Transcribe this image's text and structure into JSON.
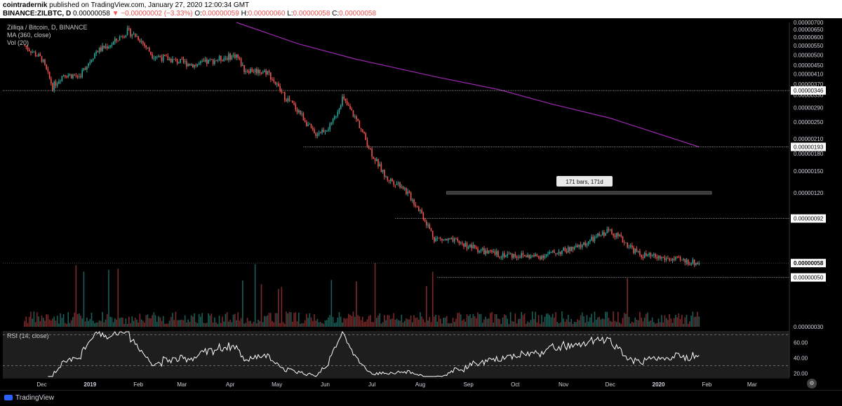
{
  "header": {
    "line1_author": "cointradernik",
    "line1_rest": " published on TradingView.com, January 27, 2020 12:00:34 GMT",
    "symbol": "BINANCE:ZILBTC, D",
    "last": "0.00000058",
    "change": "▼ −0.00000002 (−3.33%)",
    "o_label": "O:",
    "o": "0.00000059",
    "h_label": "H:",
    "h": "0.00000060",
    "l_label": "L:",
    "l": "0.00000058",
    "c_label": "C:",
    "c": "0.00000058"
  },
  "legend": {
    "title": "Zilliqa / Bitcoin, D, BINANCE",
    "ma": "MA (360, close)",
    "vol": "Vol (20)"
  },
  "rsi_title": "RSI (14, close)",
  "annotation": "171 bars, 171d",
  "footer": {
    "brand": "TradingView"
  },
  "colors": {
    "up": "#26a69a",
    "down": "#ef5350",
    "ma": "#9c27b0",
    "rsi_line": "#ffffff",
    "bg": "#000000",
    "axis_text": "#d1d4dc"
  },
  "chart_data": {
    "type": "candlestick",
    "title": "Zilliqa / Bitcoin, D, BINANCE",
    "price_axis_ticks": [
      "0.00000700",
      "0.00000650",
      "0.00000600",
      "0.00000550",
      "0.00000500",
      "0.00000450",
      "0.00000410",
      "0.00000370",
      "0.00000330",
      "0.00000290",
      "0.00000250",
      "0.00000210",
      "0.00000180",
      "0.00000150",
      "0.00000120",
      "0.00000050",
      "0.00000030"
    ],
    "ylim": [
      3e-07,
      7e-06
    ],
    "scale": "log",
    "x_ticks": [
      "Dec",
      "2019",
      "Feb",
      "Mar",
      "Apr",
      "May",
      "Jun",
      "Jul",
      "Aug",
      "Sep",
      "Oct",
      "Nov",
      "Dec",
      "2020",
      "Feb",
      "Mar"
    ],
    "price_path": [
      [
        "2018-11-20",
        5.5e-06
      ],
      [
        "2018-12-01",
        4.8e-06
      ],
      [
        "2018-12-08",
        3.6e-06
      ],
      [
        "2018-12-15",
        4.1e-06
      ],
      [
        "2018-12-25",
        4e-06
      ],
      [
        "2019-01-05",
        5.2e-06
      ],
      [
        "2019-01-15",
        5.6e-06
      ],
      [
        "2019-01-25",
        6.4e-06
      ],
      [
        "2019-02-01",
        6e-06
      ],
      [
        "2019-02-10",
        5e-06
      ],
      [
        "2019-02-25",
        4.7e-06
      ],
      [
        "2019-03-10",
        4.5e-06
      ],
      [
        "2019-03-25",
        4.8e-06
      ],
      [
        "2019-04-05",
        5e-06
      ],
      [
        "2019-04-10",
        4.3e-06
      ],
      [
        "2019-04-25",
        4.2e-06
      ],
      [
        "2019-05-05",
        3.3e-06
      ],
      [
        "2019-05-15",
        2.8e-06
      ],
      [
        "2019-05-25",
        2.2e-06
      ],
      [
        "2019-06-05",
        2.4e-06
      ],
      [
        "2019-06-12",
        3.2e-06
      ],
      [
        "2019-06-22",
        2.5e-06
      ],
      [
        "2019-07-01",
        1.8e-06
      ],
      [
        "2019-07-10",
        1.4e-06
      ],
      [
        "2019-07-20",
        1.3e-06
      ],
      [
        "2019-08-01",
        1e-06
      ],
      [
        "2019-08-10",
        7.5e-07
      ],
      [
        "2019-08-25",
        7.2e-07
      ],
      [
        "2019-09-15",
        6.4e-07
      ],
      [
        "2019-10-15",
        6.2e-07
      ],
      [
        "2019-11-10",
        6.8e-07
      ],
      [
        "2019-12-01",
        8.2e-07
      ],
      [
        "2019-12-20",
        6.3e-07
      ],
      [
        "2020-01-27",
        5.8e-07
      ]
    ],
    "ma_path": [
      [
        "2019-04-05",
        7e-06
      ],
      [
        "2019-05-15",
        5.6e-06
      ],
      [
        "2019-06-20",
        4.8e-06
      ],
      [
        "2019-08-10",
        4e-06
      ],
      [
        "2019-09-20",
        3.5e-06
      ],
      [
        "2019-10-25",
        3e-06
      ],
      [
        "2019-12-01",
        2.6e-06
      ],
      [
        "2020-01-27",
        1.93e-06
      ]
    ],
    "horizontal_levels": [
      {
        "value": 3.46e-06,
        "label": "0.00000346"
      },
      {
        "value": 1.93e-06,
        "label": "0.00000193"
      },
      {
        "value": 9.2e-07,
        "label": "0.00000092"
      },
      {
        "value": 5e-07,
        "label": "0.00000050"
      }
    ],
    "current_price_label": "0.00000058",
    "rsi": {
      "ticks": [
        "60.00",
        "40.00",
        "20.00"
      ],
      "ylim": [
        15,
        75
      ],
      "bands": [
        30,
        70
      ]
    }
  }
}
